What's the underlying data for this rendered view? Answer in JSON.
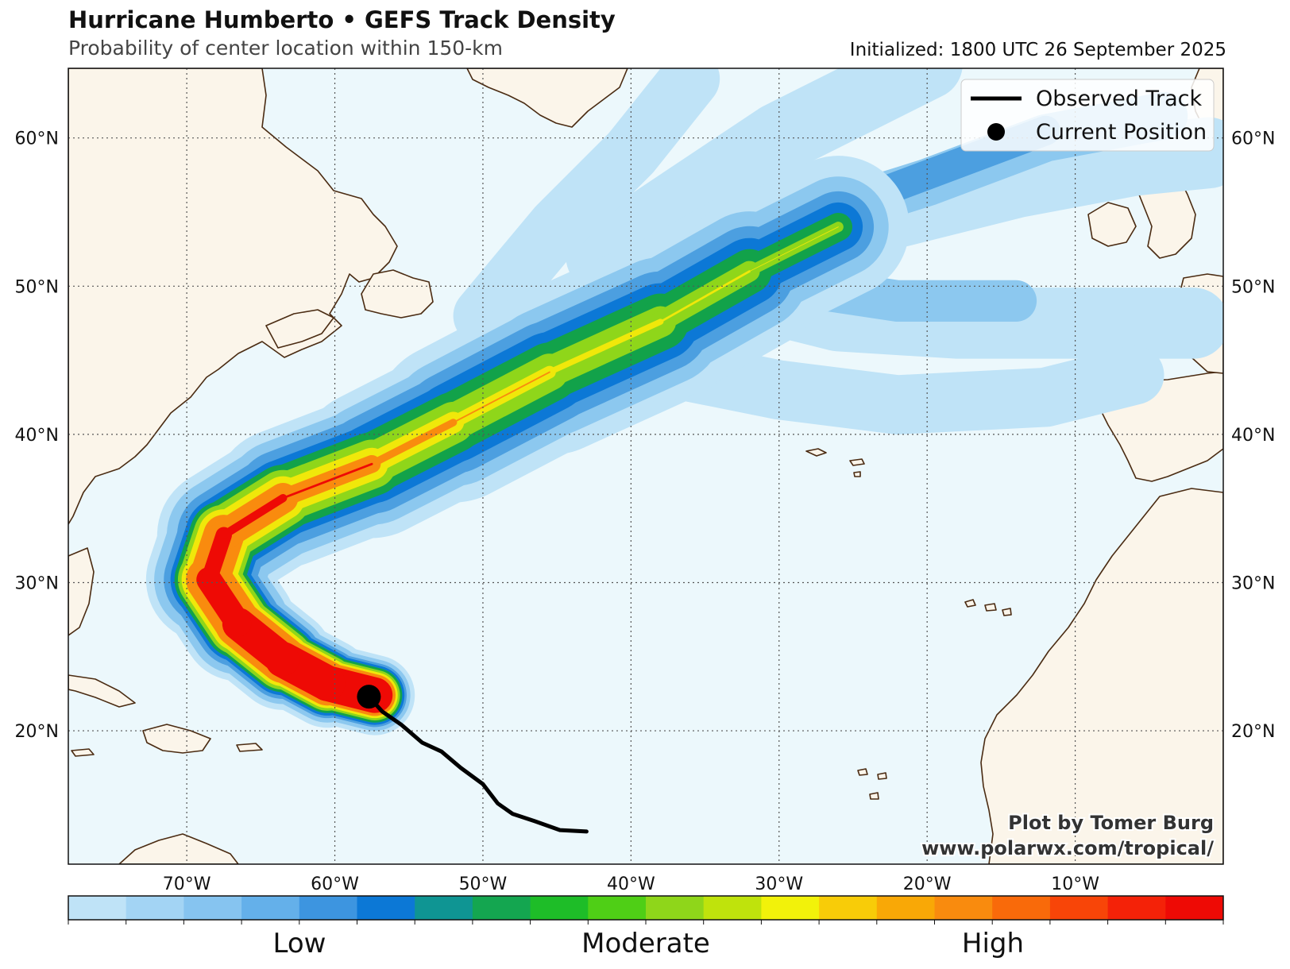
{
  "header": {
    "title": "Hurricane Humberto • GEFS Track Density",
    "subtitle": "Probability of center location within 150-km",
    "initialized": "Initialized: 1800 UTC 26 September 2025"
  },
  "map": {
    "lon_range": [
      -78,
      0
    ],
    "lat_range": [
      11,
      64.7
    ],
    "ocean_color": "#ecf8fc",
    "land_color": "#fbf5ea",
    "coast_color": "#4a2b12",
    "grid": "dotted",
    "lon_ticks": [
      -70,
      -60,
      -50,
      -40,
      -30,
      -20,
      -10
    ],
    "lon_labels": [
      "70°W",
      "60°W",
      "50°W",
      "40°W",
      "30°W",
      "20°W",
      "10°W"
    ],
    "lat_ticks": [
      20,
      30,
      40,
      50,
      60
    ],
    "lat_labels": [
      "20°N",
      "30°N",
      "40°N",
      "50°N",
      "60°N"
    ]
  },
  "legend": {
    "position": "top-right",
    "items": [
      "Observed Track",
      "Current Position"
    ]
  },
  "observed_track": [
    [
      -57.7,
      22.3
    ],
    [
      -56.8,
      21.3
    ],
    [
      -55.5,
      20.4
    ],
    [
      -54.1,
      19.2
    ],
    [
      -52.8,
      18.6
    ],
    [
      -51.5,
      17.5
    ],
    [
      -50.0,
      16.4
    ],
    [
      -49.0,
      15.1
    ],
    [
      -48.0,
      14.4
    ],
    [
      -46.5,
      13.9
    ],
    [
      -44.8,
      13.3
    ],
    [
      -43.0,
      13.2
    ]
  ],
  "current_position": [
    -57.7,
    22.3
  ],
  "density": {
    "main_path": [
      [
        -57.3,
        22.4
      ],
      [
        -60.5,
        23.2
      ],
      [
        -63.5,
        24.8
      ],
      [
        -66.5,
        27.2
      ],
      [
        -68.5,
        30.2
      ],
      [
        -67.5,
        33.2
      ],
      [
        -63.5,
        35.7
      ],
      [
        -57.5,
        38.0
      ],
      [
        -52.0,
        40.8
      ],
      [
        -45.5,
        44.2
      ],
      [
        -38.0,
        47.6
      ],
      [
        -32.0,
        51.0
      ],
      [
        -26.0,
        54.0
      ]
    ],
    "main_path_bands": [
      {
        "color": "#bfe3f7",
        "width_deg": [
          2.6,
          2.8,
          3.2,
          3.6,
          4.1,
          4.4,
          4.6,
          4.8,
          5.2,
          5.6,
          5.6,
          5.2,
          4.4
        ]
      },
      {
        "color": "#8cc8ef",
        "width_deg": [
          2.3,
          2.5,
          2.8,
          3.2,
          3.6,
          3.8,
          3.9,
          4.0,
          4.2,
          4.4,
          4.3,
          3.8,
          3.0
        ]
      },
      {
        "color": "#4c9fe0",
        "width_deg": [
          2.1,
          2.2,
          2.5,
          2.8,
          3.0,
          3.1,
          3.2,
          3.3,
          3.4,
          3.5,
          3.3,
          2.8,
          2.0
        ]
      },
      {
        "color": "#0c78d6",
        "width_deg": [
          1.95,
          2.05,
          2.3,
          2.5,
          2.6,
          2.6,
          2.6,
          2.6,
          2.7,
          2.7,
          2.5,
          2.0,
          1.3
        ]
      },
      {
        "color": "#12a24a",
        "width_deg": [
          1.8,
          1.9,
          2.1,
          2.3,
          2.35,
          2.3,
          2.2,
          2.1,
          2.0,
          2.0,
          1.8,
          1.2,
          0.7
        ]
      },
      {
        "color": "#8fd61a",
        "width_deg": [
          1.65,
          1.75,
          1.95,
          2.1,
          2.1,
          2.0,
          1.8,
          1.5,
          1.3,
          1.2,
          0.9,
          0.5,
          0.2
        ]
      },
      {
        "color": "#f0e80a",
        "width_deg": [
          1.5,
          1.6,
          1.75,
          1.85,
          1.85,
          1.65,
          1.3,
          0.9,
          0.55,
          0.3,
          0.1,
          0.05,
          0.0
        ]
      },
      {
        "color": "#f98b0e",
        "width_deg": [
          1.35,
          1.45,
          1.55,
          1.6,
          1.5,
          1.25,
          0.8,
          0.4,
          0.1,
          0.0,
          0.0,
          0.0,
          0.0
        ]
      },
      {
        "color": "#ee0a05",
        "width_deg": [
          1.2,
          1.2,
          1.2,
          1.0,
          0.7,
          0.4,
          0.15,
          0.0,
          0.0,
          0.0,
          0.0,
          0.0,
          0.0
        ]
      }
    ],
    "branches": [
      {
        "color": "#bfe3f7",
        "width_deg": 2.4,
        "points": [
          [
            -34,
            50
          ],
          [
            -26,
            48
          ],
          [
            -18,
            47.5
          ],
          [
            -10,
            47.5
          ],
          [
            -2,
            47.5
          ]
        ]
      },
      {
        "color": "#bfe3f7",
        "width_deg": 2.0,
        "points": [
          [
            -40,
            45
          ],
          [
            -30,
            43
          ],
          [
            -22,
            42
          ],
          [
            -12,
            42.5
          ],
          [
            -6,
            44
          ]
        ]
      },
      {
        "color": "#bfe3f7",
        "width_deg": 2.4,
        "points": [
          [
            -30,
            53
          ],
          [
            -22,
            55
          ],
          [
            -14,
            57
          ],
          [
            -6,
            58.5
          ],
          [
            -1,
            59
          ]
        ]
      },
      {
        "color": "#bfe3f7",
        "width_deg": 2.4,
        "points": [
          [
            -42,
            52
          ],
          [
            -36,
            56
          ],
          [
            -30,
            60
          ],
          [
            -24,
            63
          ],
          [
            -20,
            65
          ]
        ]
      },
      {
        "color": "#bfe3f7",
        "width_deg": 2.0,
        "points": [
          [
            -50,
            48
          ],
          [
            -45,
            54
          ],
          [
            -40,
            59
          ],
          [
            -36,
            64
          ]
        ]
      },
      {
        "color": "#8cc8ef",
        "width_deg": 1.6,
        "points": [
          [
            -28,
            54.5
          ],
          [
            -20,
            57
          ],
          [
            -12,
            60
          ],
          [
            -4,
            61.5
          ]
        ]
      },
      {
        "color": "#8cc8ef",
        "width_deg": 1.4,
        "points": [
          [
            -32,
            50.5
          ],
          [
            -22,
            49
          ],
          [
            -14,
            49
          ]
        ]
      },
      {
        "color": "#4c9fe0",
        "width_deg": 1.0,
        "points": [
          [
            -28,
            54.5
          ],
          [
            -20,
            57.5
          ],
          [
            -12,
            60.5
          ]
        ]
      }
    ]
  },
  "colorbar": {
    "colors": [
      "#bfe3f7",
      "#a3d4f4",
      "#86c4f0",
      "#64b0ea",
      "#3d95e0",
      "#0c78d6",
      "#0f9593",
      "#14a650",
      "#1ebd28",
      "#4fcf16",
      "#8fd61a",
      "#bfe30c",
      "#f2f20a",
      "#f8cc08",
      "#f9a806",
      "#f98b0e",
      "#f96a0a",
      "#f84508",
      "#f42208",
      "#ee0a05"
    ],
    "labels": [
      "Low",
      "Moderate",
      "High"
    ]
  },
  "credit": {
    "line1": "Plot by Tomer Burg",
    "line2": "www.polarwx.com/tropical/"
  }
}
